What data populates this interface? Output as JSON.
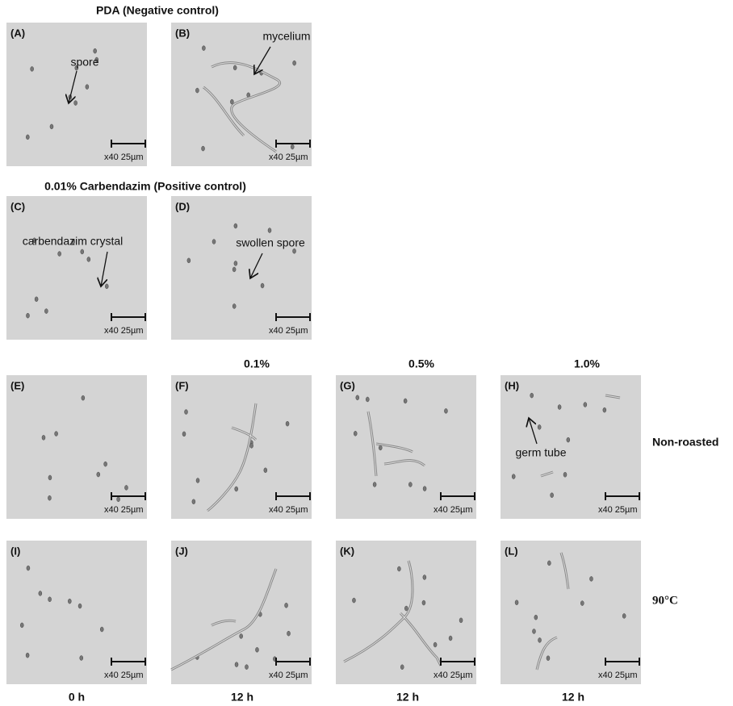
{
  "headings": [
    "PDA (Negative control)",
    "0.01% Carbendazim (Positive control)"
  ],
  "column_labels": [
    "0.1%",
    "0.5%",
    "1.0%"
  ],
  "row_labels": [
    "Non-roasted",
    "90°C"
  ],
  "time_labels": [
    "0 h",
    "12 h",
    "12 h",
    "12 h"
  ],
  "panels": [
    {
      "letter": "(A)",
      "annotation": "spore",
      "scale": "x40 25µm"
    },
    {
      "letter": "(B)",
      "annotation": "mycelium",
      "scale": "x40 25µm"
    },
    {
      "letter": "(C)",
      "annotation": "carbendazim crystal",
      "scale": "x40 25µm"
    },
    {
      "letter": "(D)",
      "annotation": "swollen spore",
      "scale": "x40 25µm"
    },
    {
      "letter": "(E)",
      "scale": "x40 25µm"
    },
    {
      "letter": "(F)",
      "scale": "x40 25µm"
    },
    {
      "letter": "(G)",
      "scale": "x40 25µm"
    },
    {
      "letter": "(H)",
      "annotation": "germ tube",
      "scale": "x40 25µm"
    },
    {
      "letter": "(I)",
      "scale": "x40 25µm"
    },
    {
      "letter": "(J)",
      "scale": "x40 25µm"
    },
    {
      "letter": "(K)",
      "scale": "x40 25µm"
    },
    {
      "letter": "(L)",
      "scale": "x40 25µm"
    }
  ]
}
